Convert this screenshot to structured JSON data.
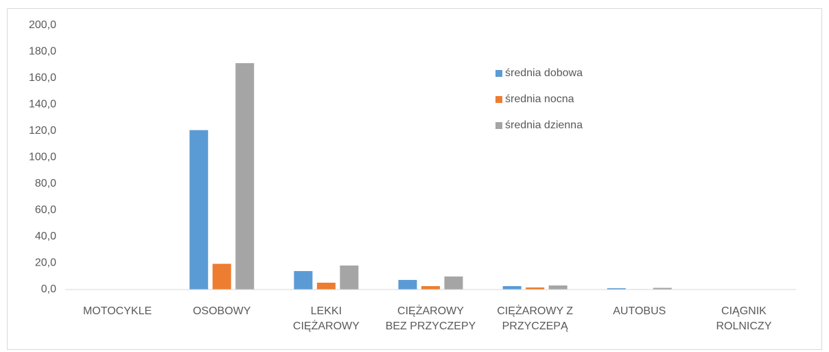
{
  "chart_data": {
    "type": "bar",
    "categories": [
      "MOTOCYKLE",
      "OSOBOWY",
      "LEKKI\nCIĘŻAROWY",
      "CIĘŻAROWY\nBEZ PRZYCZEPY",
      "CIĘŻAROWY Z\nPRZYCZEPĄ",
      "AUTOBUS",
      "CIĄGNIK\nROLNICZY"
    ],
    "series": [
      {
        "name": "średnia dobowa",
        "color": "#5b9bd5",
        "values": [
          0.1,
          120.7,
          14.0,
          7.3,
          2.6,
          1.0,
          0.1
        ]
      },
      {
        "name": "średnia nocna",
        "color": "#ed7d31",
        "values": [
          0.0,
          19.5,
          5.2,
          2.6,
          1.6,
          0.3,
          0.0
        ]
      },
      {
        "name": "średnia dzienna",
        "color": "#a5a5a5",
        "values": [
          0.1,
          171.4,
          18.2,
          9.9,
          3.1,
          1.3,
          0.1
        ]
      }
    ],
    "ylim": [
      0,
      200
    ],
    "yticks": [
      {
        "value": 0,
        "label": "0,0"
      },
      {
        "value": 20,
        "label": "20,0"
      },
      {
        "value": 40,
        "label": "40,0"
      },
      {
        "value": 60,
        "label": "60,0"
      },
      {
        "value": 80,
        "label": "80,0"
      },
      {
        "value": 100,
        "label": "100,0"
      },
      {
        "value": 120,
        "label": "120,0"
      },
      {
        "value": 140,
        "label": "140,0"
      },
      {
        "value": 160,
        "label": "160,0"
      },
      {
        "value": 180,
        "label": "180,0"
      },
      {
        "value": 200,
        "label": "200,0"
      }
    ],
    "grid": false,
    "legend": "upper-right"
  }
}
